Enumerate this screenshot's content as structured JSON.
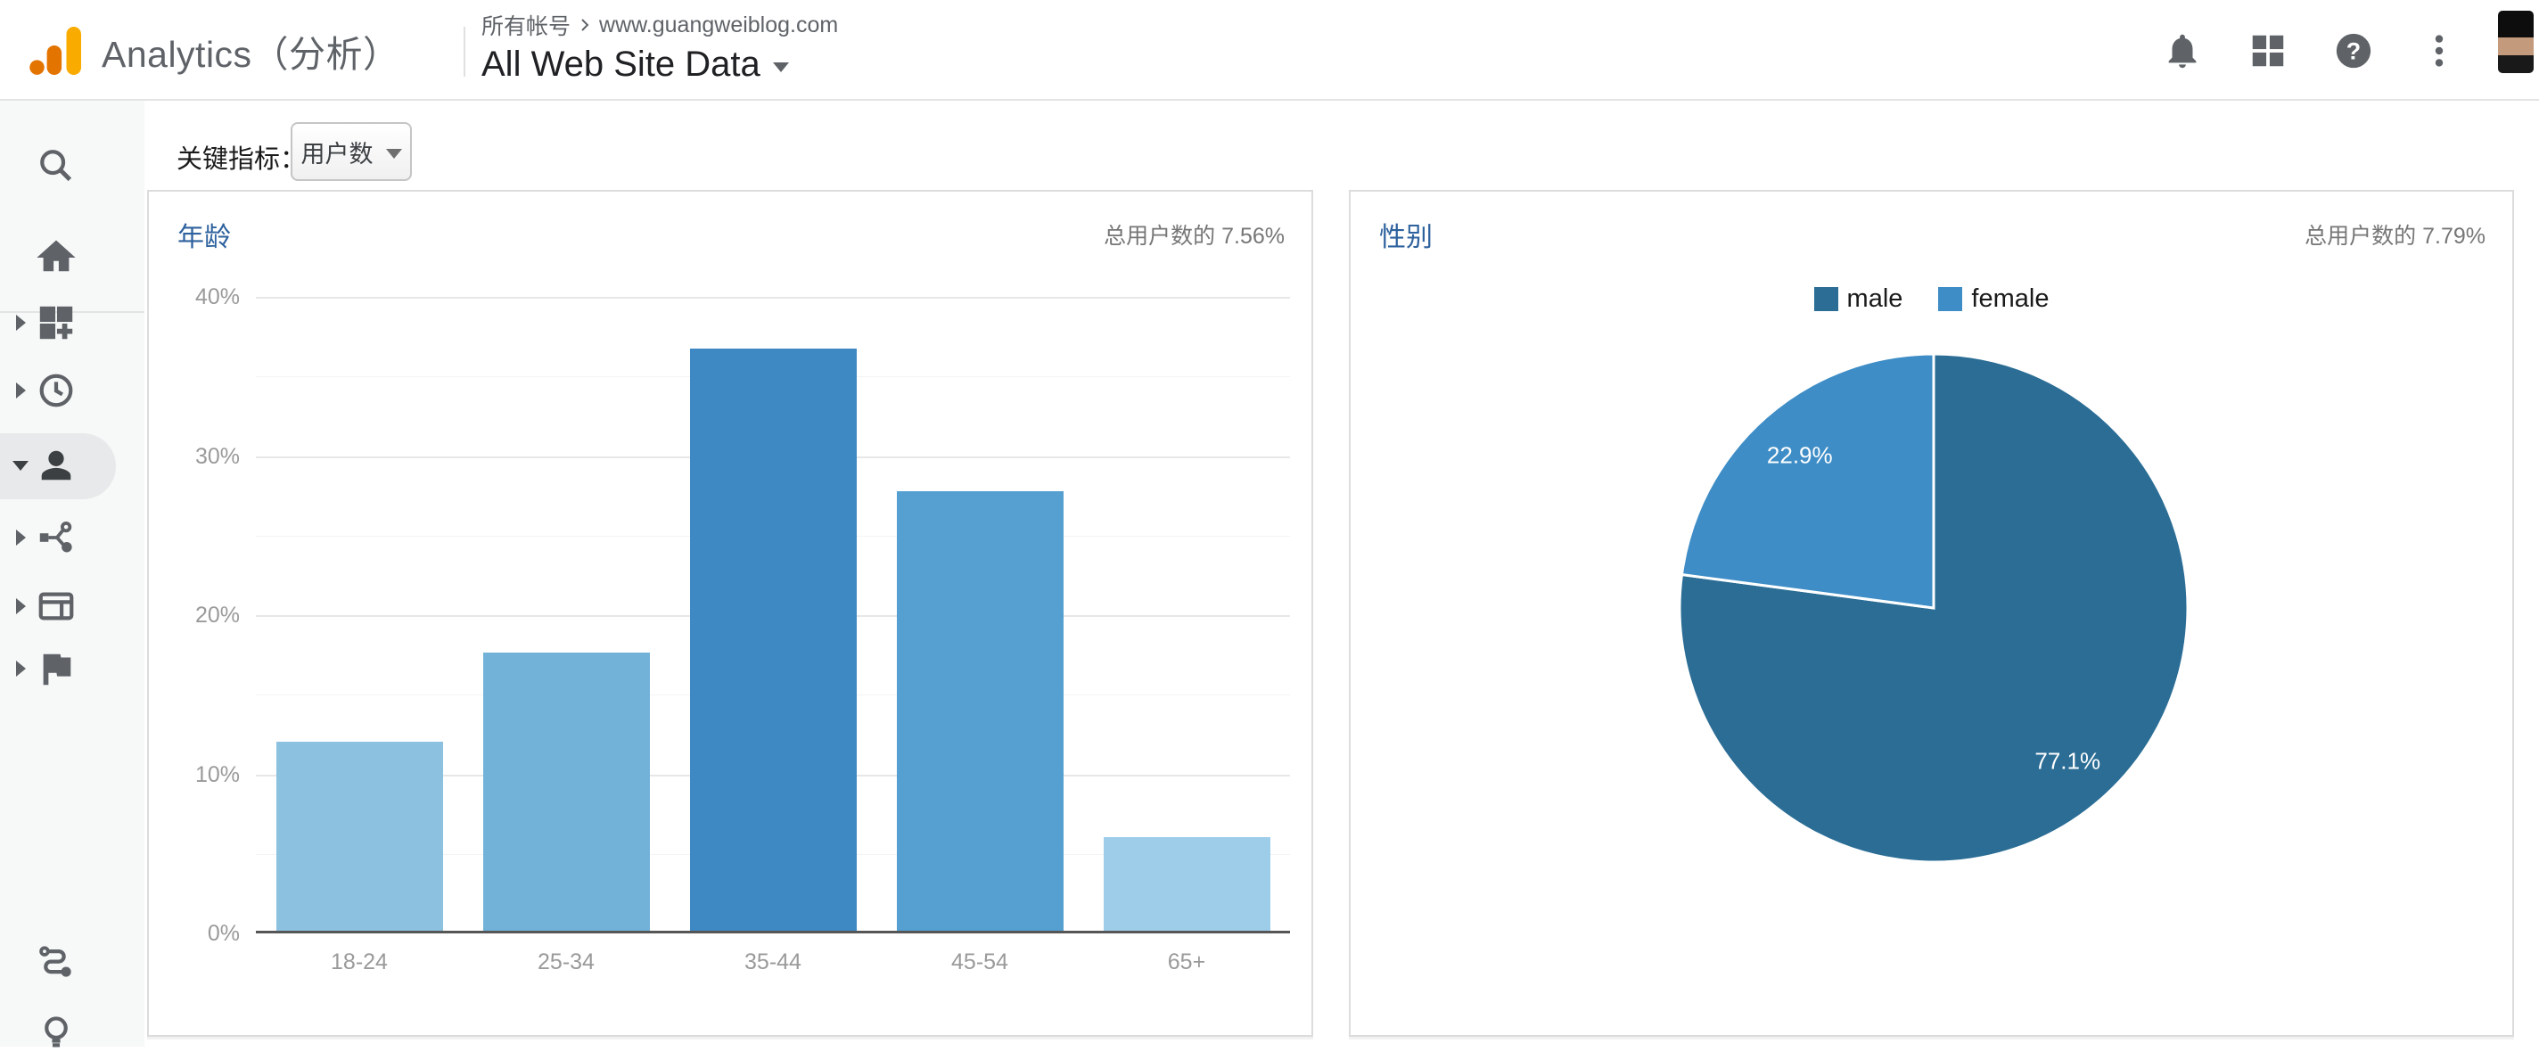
{
  "header": {
    "product_name": "Analytics（分析）",
    "breadcrumb": {
      "account": "所有帐号",
      "site": "www.guangweiblog.com"
    },
    "property_title": "All Web Site Data",
    "help_glyph": "?",
    "action_icons": [
      "notifications-icon",
      "apps-grid-icon",
      "help-icon",
      "more-vert-icon",
      "avatar"
    ]
  },
  "sidebar": {
    "icons": [
      "search-icon",
      "home-icon",
      "customization-icon",
      "realtime-icon",
      "audience-icon",
      "acquisition-icon",
      "behavior-icon",
      "conversions-icon",
      "attribution-icon",
      "discover-icon"
    ],
    "selected": "audience"
  },
  "toolbar": {
    "metric_label": "关键指标：",
    "metric_value": "用户数"
  },
  "chart_data": [
    {
      "type": "bar",
      "title": "年龄",
      "subtitle": "总用户数的 7.56%",
      "categories": [
        "18-24",
        "25-34",
        "35-44",
        "45-54",
        "65+"
      ],
      "values": [
        11.9,
        17.5,
        36.6,
        27.6,
        5.9
      ],
      "colors": [
        "#8cc1e0",
        "#72b2d8",
        "#3e89c4",
        "#55a0d0",
        "#9ecdea"
      ],
      "ylim": [
        0,
        40
      ],
      "yticks": [
        "40%",
        "30%",
        "20%",
        "10%",
        "0%"
      ],
      "grid": true,
      "legend": "none"
    },
    {
      "type": "pie",
      "title": "性别",
      "subtitle": "总用户数的 7.79%",
      "legend_position": "top",
      "slices": [
        {
          "label": "male",
          "value": 77.1,
          "display": "77.1%",
          "color": "#2b6d95"
        },
        {
          "label": "female",
          "value": 22.9,
          "display": "22.9%",
          "color": "#3e8dc6"
        }
      ]
    }
  ]
}
